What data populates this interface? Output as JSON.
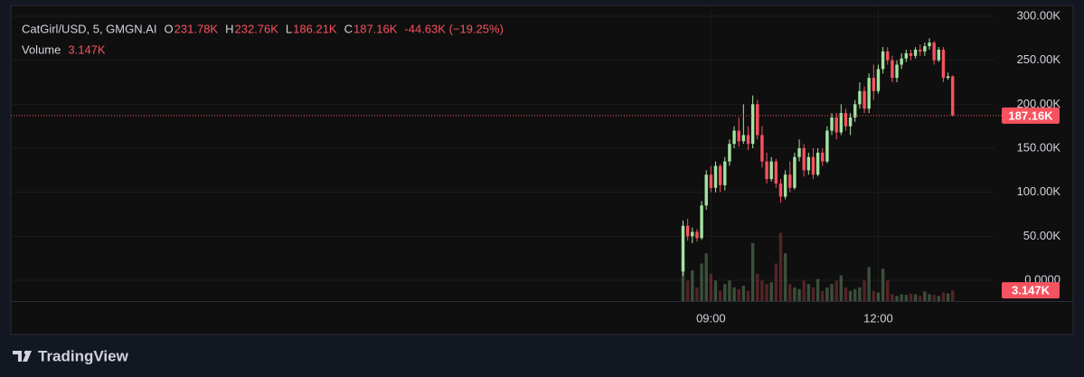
{
  "chart_data": {
    "type": "candlestick",
    "symbol": "CatGirl/USD, 5, GMGN.AI",
    "ohlc_legend": [
      {
        "key": "O",
        "value": "231.78K"
      },
      {
        "key": "H",
        "value": "232.76K"
      },
      {
        "key": "L",
        "value": "186.21K"
      },
      {
        "key": "C",
        "value": "187.16K"
      }
    ],
    "change": "-44.63K (−19.25%)",
    "volume_name": "Volume",
    "volume_last_label": "3.147K",
    "price_last_label": "187.16K",
    "brand": "TradingView",
    "up_color": "#a3e3a0",
    "down_color": "#f7525f",
    "x": [
      510,
      515,
      520,
      525,
      530,
      535,
      540,
      545,
      550,
      555,
      560,
      565,
      570,
      575,
      580,
      585,
      590,
      595,
      600,
      605,
      610,
      615,
      620,
      625,
      630,
      635,
      640,
      645,
      650,
      655,
      660,
      665,
      670,
      675,
      680,
      685,
      690,
      695,
      700,
      705,
      710,
      715,
      720,
      725,
      730,
      735,
      740,
      745,
      750,
      755,
      760,
      765,
      770,
      775,
      780,
      785,
      790,
      795,
      800
    ],
    "open": [
      10000,
      62000,
      50000,
      55000,
      48000,
      85000,
      120000,
      105000,
      130000,
      108000,
      135000,
      155000,
      170000,
      158000,
      165000,
      155000,
      200000,
      165000,
      135000,
      115000,
      135000,
      110000,
      95000,
      120000,
      105000,
      140000,
      150000,
      125000,
      140000,
      120000,
      145000,
      135000,
      170000,
      185000,
      168000,
      190000,
      175000,
      185000,
      200000,
      215000,
      195000,
      230000,
      215000,
      240000,
      260000,
      250000,
      230000,
      245000,
      252000,
      258000,
      255000,
      262000,
      260000,
      266000,
      270000,
      250000,
      262000,
      230000,
      231780
    ],
    "high": [
      68000,
      70000,
      60000,
      58000,
      90000,
      125000,
      130000,
      135000,
      132000,
      140000,
      160000,
      175000,
      185000,
      200000,
      175000,
      210000,
      205000,
      175000,
      145000,
      140000,
      138000,
      115000,
      125000,
      135000,
      145000,
      160000,
      155000,
      145000,
      150000,
      150000,
      150000,
      175000,
      190000,
      190000,
      200000,
      195000,
      190000,
      205000,
      225000,
      220000,
      235000,
      245000,
      245000,
      265000,
      265000,
      255000,
      250000,
      258000,
      262000,
      262000,
      265000,
      268000,
      270000,
      275000,
      272000,
      265000,
      265000,
      236000,
      232760
    ],
    "low": [
      5000,
      45000,
      42000,
      44000,
      46000,
      80000,
      100000,
      100000,
      100000,
      102000,
      130000,
      150000,
      152000,
      155000,
      148000,
      150000,
      160000,
      128000,
      110000,
      112000,
      105000,
      88000,
      92000,
      100000,
      103000,
      135000,
      118000,
      120000,
      115000,
      118000,
      130000,
      133000,
      165000,
      160000,
      165000,
      170000,
      165000,
      180000,
      195000,
      190000,
      190000,
      205000,
      212000,
      235000,
      245000,
      225000,
      225000,
      240000,
      248000,
      250000,
      252000,
      255000,
      255000,
      262000,
      245000,
      248000,
      225000,
      228000,
      186210
    ],
    "close": [
      62000,
      50000,
      55000,
      48000,
      85000,
      120000,
      105000,
      130000,
      108000,
      135000,
      155000,
      170000,
      158000,
      165000,
      155000,
      200000,
      165000,
      135000,
      115000,
      135000,
      110000,
      95000,
      120000,
      105000,
      140000,
      150000,
      125000,
      140000,
      120000,
      145000,
      135000,
      170000,
      185000,
      168000,
      190000,
      175000,
      185000,
      200000,
      215000,
      195000,
      230000,
      215000,
      240000,
      260000,
      250000,
      230000,
      245000,
      252000,
      258000,
      255000,
      262000,
      260000,
      266000,
      270000,
      250000,
      262000,
      230000,
      231780,
      187160
    ],
    "volume": [
      12000,
      6000,
      9000,
      4000,
      11000,
      14000,
      8000,
      6000,
      3000,
      5000,
      6000,
      4000,
      3500,
      4500,
      3000,
      17000,
      8000,
      6000,
      5000,
      5500,
      11000,
      20000,
      14000,
      5000,
      4000,
      3500,
      6000,
      5000,
      4000,
      6500,
      3000,
      4000,
      5000,
      6000,
      7500,
      4000,
      3000,
      3500,
      4000,
      6000,
      10000,
      3000,
      2500,
      9500,
      6000,
      2000,
      1500,
      2000,
      1800,
      2200,
      2000,
      1500,
      2800,
      2000,
      1800,
      1500,
      2500,
      2200,
      3147
    ],
    "xlim": [
      -213,
      845
    ],
    "xticks": [
      {
        "value": 540,
        "label": "09:00"
      },
      {
        "value": 720,
        "label": "12:00"
      }
    ],
    "ylim": [
      -23600,
      312300
    ],
    "yticks": [
      {
        "value": 0,
        "label": "0.0000"
      },
      {
        "value": 50000,
        "label": "50.00K"
      },
      {
        "value": 100000,
        "label": "100.00K"
      },
      {
        "value": 150000,
        "label": "150.00K"
      },
      {
        "value": 200000,
        "label": "200.00K"
      },
      {
        "value": 250000,
        "label": "250.00K"
      },
      {
        "value": 300000,
        "label": "300.00K"
      }
    ],
    "volume_ylim": [
      0,
      75000
    ],
    "grid": true
  }
}
